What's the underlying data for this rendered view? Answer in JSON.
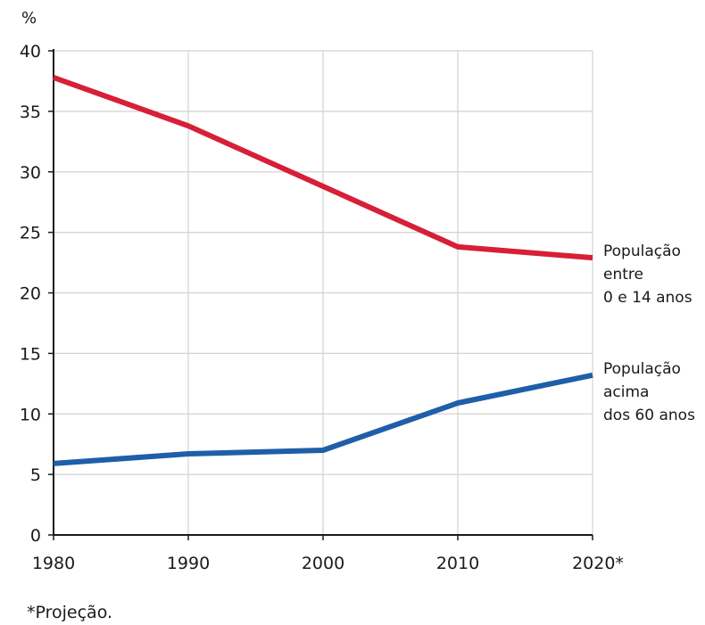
{
  "chart_data": {
    "type": "line",
    "ylabel": "%",
    "ylim": [
      0,
      40
    ],
    "yticks": [
      "0",
      "5",
      "10",
      "15",
      "20",
      "25",
      "30",
      "35",
      "40"
    ],
    "x": [
      1980,
      1990,
      2000,
      2010,
      2020
    ],
    "xticks": [
      "1980",
      "1990",
      "2000",
      "2010",
      "2020*"
    ],
    "grid": true,
    "series": [
      {
        "name": "População entre 0 e 14 anos",
        "label_lines": [
          "População",
          "entre",
          "0 e 14 anos"
        ],
        "color": "#d71f36",
        "values": [
          37.8,
          33.8,
          28.8,
          23.8,
          22.9
        ]
      },
      {
        "name": "População acima dos 60 anos",
        "label_lines": [
          "População",
          "acima",
          "dos 60 anos"
        ],
        "color": "#1f5ea8",
        "values": [
          5.9,
          6.7,
          7.0,
          10.9,
          13.2
        ]
      }
    ],
    "footnote": "*Projeção."
  }
}
